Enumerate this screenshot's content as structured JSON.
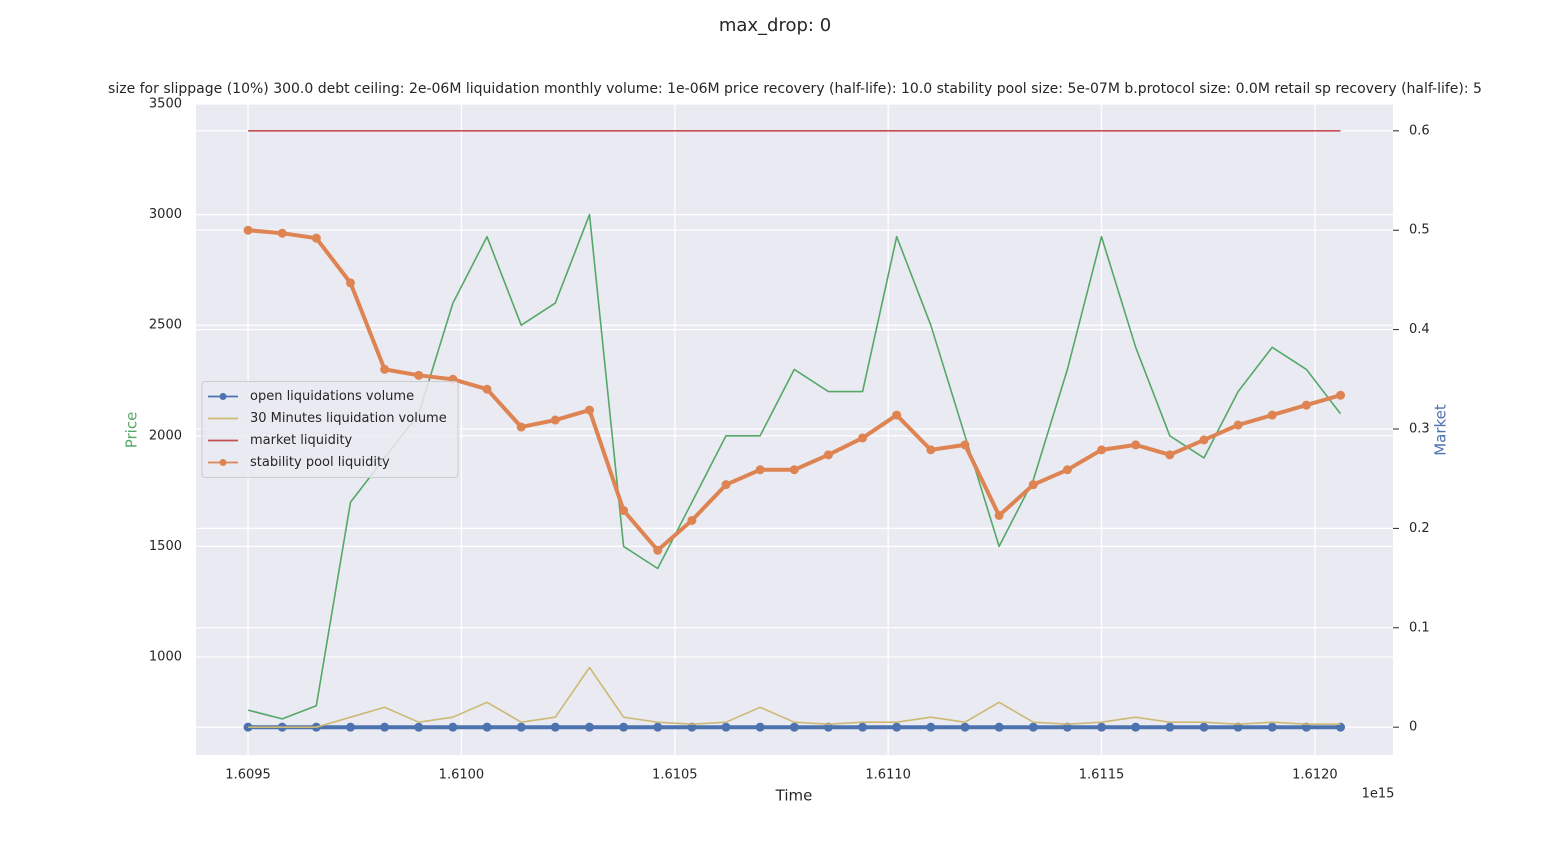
{
  "chart_data": {
    "type": "line",
    "title": "max_drop: 0",
    "subtitle": "size for slippage (10%) 300.0 debt ceiling: 2e-06M liquidation monthly volume: 1e-06M price recovery (half-life): 10.0 stability pool size: 5e-07M b.protocol size: 0.0M retail sp recovery (half-life): 5",
    "x_label": "Time",
    "x_offset_label": "1e15",
    "y_label": "Price",
    "y2_label": "Market",
    "x": [
      1.6095,
      1.60958,
      1.60966,
      1.60974,
      1.60982,
      1.6099,
      1.60998,
      1.61006,
      1.61014,
      1.61022,
      1.6103,
      1.61038,
      1.61046,
      1.61054,
      1.61062,
      1.6107,
      1.61078,
      1.61086,
      1.61094,
      1.61102,
      1.6111,
      1.61118,
      1.61126,
      1.61134,
      1.61142,
      1.6115,
      1.61158,
      1.61166,
      1.61174,
      1.61182,
      1.6119,
      1.61198,
      1.61206
    ],
    "xlim": [
      1.609378,
      1.612183
    ],
    "xticks": [
      1.6095,
      {
        "value": 1.61,
        "label": "1.6100"
      },
      1.6105,
      {
        "value": 1.611,
        "label": "1.6110"
      },
      1.6115,
      {
        "value": 1.612,
        "label": "1.6120"
      }
    ],
    "ylim": [
      557,
      3500
    ],
    "yticks": [
      1000,
      1500,
      2000,
      2500,
      3000,
      3500
    ],
    "y2lim": [
      -0.028,
      0.627
    ],
    "y2ticks": [
      0.0,
      0.1,
      0.2,
      0.3,
      0.4,
      0.5,
      0.6
    ],
    "grid": true,
    "legend": "center left",
    "series": [
      {
        "color": "#55a868",
        "marker": false,
        "values": [
          760,
          720,
          780,
          1700,
          1900,
          2100,
          2600,
          2900,
          2500,
          2600,
          3000,
          1500,
          1400,
          1700,
          2000,
          2000,
          2300,
          2200,
          2200,
          2900,
          2500,
          2000,
          1500,
          1800,
          2300,
          2900,
          2400,
          2000,
          1900,
          2200,
          2400,
          2300,
          2100
        ]
      },
      {
        "name": "open liquidations volume",
        "color": "#4c72b0",
        "axis": "y2",
        "marker": true,
        "values": [
          0,
          0,
          0,
          0,
          0,
          0,
          0,
          0,
          0,
          0,
          0,
          0,
          0,
          0,
          0,
          0,
          0,
          0,
          0,
          0,
          0,
          0,
          0,
          0,
          0,
          0,
          0,
          0,
          0,
          0,
          0,
          0,
          0
        ]
      },
      {
        "name": "30 Minutes liquidation volume",
        "color": "#ccb974",
        "axis": "y2",
        "marker": false,
        "values": [
          0,
          0,
          0,
          0.01,
          0.02,
          0.005,
          0.01,
          0.025,
          0.005,
          0.01,
          0.06,
          0.01,
          0.005,
          0.003,
          0.005,
          0.02,
          0.005,
          0.003,
          0.005,
          0.005,
          0.01,
          0.005,
          0.025,
          0.005,
          0.003,
          0.005,
          0.01,
          0.005,
          0.005,
          0.003,
          0.005,
          0.003,
          0.003
        ]
      },
      {
        "name": "market liquidity",
        "color": "#c44e52",
        "axis": "y2",
        "marker": false,
        "values": [
          0.6,
          0.6,
          0.6,
          0.6,
          0.6,
          0.6,
          0.6,
          0.6,
          0.6,
          0.6,
          0.6,
          0.6,
          0.6,
          0.6,
          0.6,
          0.6,
          0.6,
          0.6,
          0.6,
          0.6,
          0.6,
          0.6,
          0.6,
          0.6,
          0.6,
          0.6,
          0.6,
          0.6,
          0.6,
          0.6,
          0.6,
          0.6,
          0.6
        ]
      },
      {
        "name": "stability pool liquidity",
        "color": "#dd8452",
        "axis": "y2",
        "marker": true,
        "values": [
          0.5,
          0.497,
          0.492,
          0.447,
          0.36,
          0.354,
          0.35,
          0.34,
          0.302,
          0.309,
          0.319,
          0.218,
          0.178,
          0.208,
          0.244,
          0.259,
          0.259,
          0.274,
          0.291,
          0.314,
          0.279,
          0.284,
          0.213,
          0.244,
          0.259,
          0.279,
          0.284,
          0.274,
          0.289,
          0.304,
          0.314,
          0.324,
          0.334
        ]
      }
    ]
  }
}
